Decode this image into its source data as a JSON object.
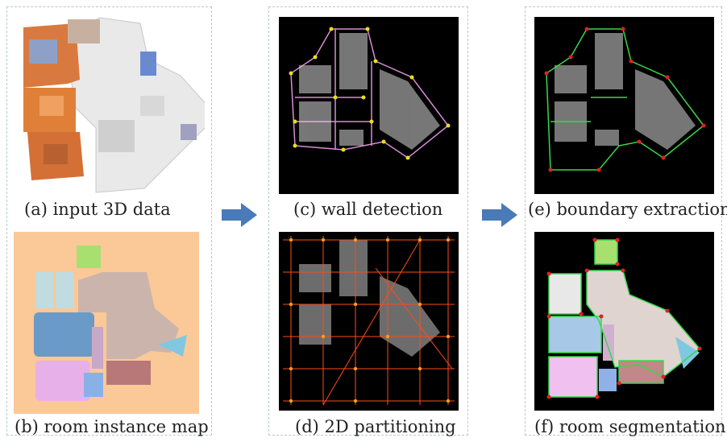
{
  "captions": {
    "a": "(a) input 3D data",
    "b": "(b) room instance map",
    "c": "(c) wall detection",
    "d": "(d) 2D partitioning",
    "e": "(e) boundary extraction",
    "f": "(f) room segmentation"
  },
  "colors": {
    "arrow": "#4a7ab8",
    "instance_background": "#fbc897",
    "scan_background": "#000000",
    "wall_lines": "#d98cd6",
    "wall_points": "#e8e020",
    "partition_lines": "#ff4a1a",
    "partition_points": "#f0a020",
    "boundary_lines": "#38d84a",
    "boundary_points": "#e02020"
  }
}
